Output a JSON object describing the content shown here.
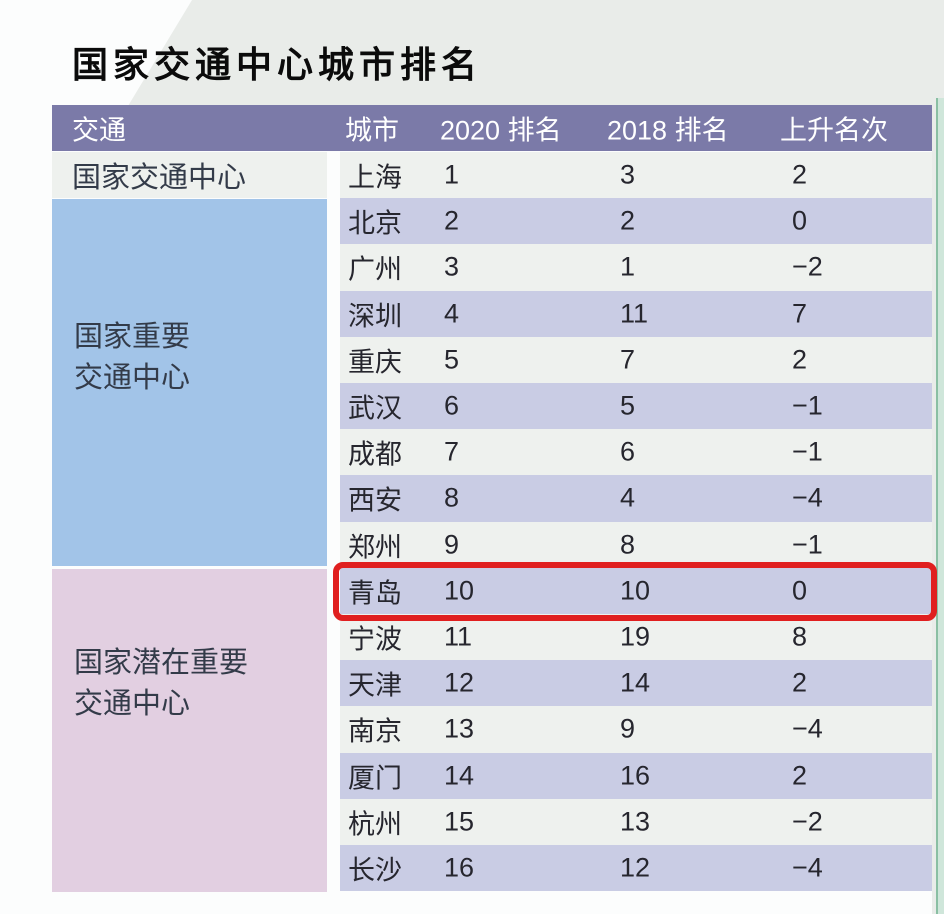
{
  "title": "国家交通中心城市排名",
  "colors": {
    "header_purple": "#7b7aa8",
    "row_light": "#eef1ee",
    "row_alt": "#c9cce4",
    "group_blue": "#a2c4e8",
    "group_pink": "#e2cfe1",
    "highlight_red": "#e01f1f",
    "edge_green": "#cfe6da",
    "edge_green_line": "#8abfa3",
    "bg_band": "#e9ece9"
  },
  "table": {
    "headers": [
      "交通",
      "城市",
      "2020 排名",
      "2018 排名",
      "上升名次"
    ],
    "categories": [
      {
        "name": "国家交通中心",
        "lines": [
          "国家交通中心"
        ]
      },
      {
        "name": "国家重要交通中心",
        "lines": [
          "国家重要",
          "交通中心"
        ]
      },
      {
        "name": "国家潜在重要交通中心",
        "lines": [
          "国家潜在重要",
          "交通中心"
        ]
      }
    ],
    "rows": [
      {
        "city": "上海",
        "rank_2020": "1",
        "rank_2018": "3",
        "change": "2"
      },
      {
        "city": "北京",
        "rank_2020": "2",
        "rank_2018": "2",
        "change": "0"
      },
      {
        "city": "广州",
        "rank_2020": "3",
        "rank_2018": "1",
        "change": "−2"
      },
      {
        "city": "深圳",
        "rank_2020": "4",
        "rank_2018": "11",
        "change": "7"
      },
      {
        "city": "重庆",
        "rank_2020": "5",
        "rank_2018": "7",
        "change": "2"
      },
      {
        "city": "武汉",
        "rank_2020": "6",
        "rank_2018": "5",
        "change": "−1"
      },
      {
        "city": "成都",
        "rank_2020": "7",
        "rank_2018": "6",
        "change": "−1"
      },
      {
        "city": "西安",
        "rank_2020": "8",
        "rank_2018": "4",
        "change": "−4"
      },
      {
        "city": "郑州",
        "rank_2020": "9",
        "rank_2018": "8",
        "change": "−1"
      },
      {
        "city": "青岛",
        "rank_2020": "10",
        "rank_2018": "10",
        "change": "0"
      },
      {
        "city": "宁波",
        "rank_2020": "11",
        "rank_2018": "19",
        "change": "8"
      },
      {
        "city": "天津",
        "rank_2020": "12",
        "rank_2018": "14",
        "change": "2"
      },
      {
        "city": "南京",
        "rank_2020": "13",
        "rank_2018": "9",
        "change": "−4"
      },
      {
        "city": "厦门",
        "rank_2020": "14",
        "rank_2018": "16",
        "change": "2"
      },
      {
        "city": "杭州",
        "rank_2020": "15",
        "rank_2018": "13",
        "change": "−2"
      },
      {
        "city": "长沙",
        "rank_2020": "16",
        "rank_2018": "12",
        "change": "−4"
      }
    ],
    "highlighted_city": "青岛"
  },
  "chart_data": {
    "type": "table",
    "title": "国家交通中心城市排名",
    "columns": [
      "交通",
      "城市",
      "2020 排名",
      "2018 排名",
      "上升名次"
    ],
    "rows": [
      [
        "国家交通中心",
        "上海",
        1,
        3,
        2
      ],
      [
        "国家重要交通中心",
        "北京",
        2,
        2,
        0
      ],
      [
        "国家重要交通中心",
        "广州",
        3,
        1,
        -2
      ],
      [
        "国家重要交通中心",
        "深圳",
        4,
        11,
        7
      ],
      [
        "国家重要交通中心",
        "重庆",
        5,
        7,
        2
      ],
      [
        "国家重要交通中心",
        "武汉",
        6,
        5,
        -1
      ],
      [
        "国家重要交通中心",
        "成都",
        7,
        6,
        -1
      ],
      [
        "国家重要交通中心",
        "西安",
        8,
        4,
        -4
      ],
      [
        "国家重要交通中心",
        "郑州",
        9,
        8,
        -1
      ],
      [
        "国家潜在重要交通中心",
        "青岛",
        10,
        10,
        0
      ],
      [
        "国家潜在重要交通中心",
        "宁波",
        11,
        19,
        8
      ],
      [
        "国家潜在重要交通中心",
        "天津",
        12,
        14,
        2
      ],
      [
        "国家潜在重要交通中心",
        "南京",
        13,
        9,
        -4
      ],
      [
        "国家潜在重要交通中心",
        "厦门",
        14,
        16,
        2
      ],
      [
        "国家潜在重要交通中心",
        "杭州",
        15,
        13,
        -2
      ],
      [
        "国家潜在重要交通中心",
        "长沙",
        16,
        12,
        -4
      ]
    ],
    "highlighted_row": [
      "国家潜在重要交通中心",
      "青岛",
      10,
      10,
      0
    ]
  }
}
